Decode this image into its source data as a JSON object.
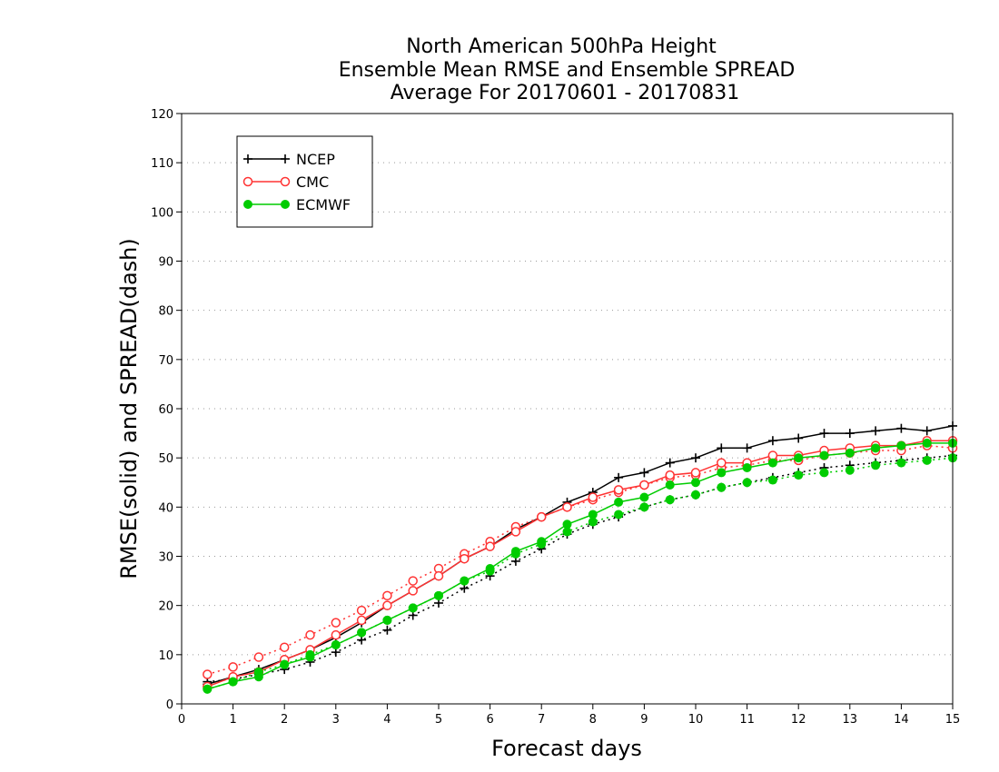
{
  "chart_data": {
    "type": "line",
    "title_lines": [
      "North American 500hPa Height",
      "Ensemble Mean RMSE and Ensemble SPREAD",
      "Average For 20170601 - 20170831"
    ],
    "xlabel": "Forecast days",
    "ylabel": "RMSE(solid) and SPREAD(dash)",
    "xlim": [
      0,
      15
    ],
    "ylim": [
      0,
      120
    ],
    "x_ticks": [
      0,
      1,
      2,
      3,
      4,
      5,
      6,
      7,
      8,
      9,
      10,
      11,
      12,
      13,
      14,
      15
    ],
    "y_ticks": [
      0,
      10,
      20,
      30,
      40,
      50,
      60,
      70,
      80,
      90,
      100,
      110,
      120
    ],
    "grid": "horizontal dotted",
    "legend_position": "top-left",
    "x": [
      0.5,
      1,
      1.5,
      2,
      2.5,
      3,
      3.5,
      4,
      4.5,
      5,
      5.5,
      6,
      6.5,
      7,
      7.5,
      8,
      8.5,
      9,
      9.5,
      10,
      10.5,
      11,
      11.5,
      12,
      12.5,
      13,
      13.5,
      14,
      14.5,
      15
    ],
    "series": [
      {
        "name": "NCEP",
        "color": "#000000",
        "marker": "plus",
        "rmse": [
          4.0,
          5.5,
          7.0,
          9.0,
          11.0,
          13.5,
          16.5,
          20.0,
          23.0,
          26.0,
          29.5,
          32.0,
          35.5,
          38.0,
          41.0,
          43.0,
          46.0,
          47.0,
          49.0,
          50.0,
          52.0,
          52.0,
          53.5,
          54.0,
          55.0,
          55.0,
          55.5,
          56.0,
          55.5,
          56.5
        ],
        "spread": [
          4.5,
          5.0,
          6.0,
          7.0,
          8.5,
          10.5,
          13.0,
          15.0,
          18.0,
          20.5,
          23.5,
          26.0,
          29.0,
          31.5,
          34.5,
          36.5,
          38.0,
          40.0,
          41.5,
          42.5,
          44.0,
          45.0,
          46.0,
          47.0,
          48.0,
          48.5,
          49.0,
          49.5,
          50.0,
          50.5
        ]
      },
      {
        "name": "CMC",
        "color": "#ff3333",
        "marker": "open-circle",
        "rmse": [
          3.5,
          5.5,
          6.5,
          9.0,
          11.0,
          14.0,
          17.0,
          20.0,
          23.0,
          26.0,
          29.5,
          32.0,
          35.0,
          38.0,
          40.0,
          42.0,
          43.5,
          44.5,
          46.5,
          47.0,
          49.0,
          49.0,
          50.5,
          50.5,
          51.5,
          52.0,
          52.5,
          52.5,
          53.5,
          53.5
        ],
        "spread": [
          6.0,
          7.5,
          9.5,
          11.5,
          14.0,
          16.5,
          19.0,
          22.0,
          25.0,
          27.5,
          30.5,
          33.0,
          36.0,
          38.0,
          40.0,
          41.5,
          43.0,
          44.5,
          46.0,
          46.5,
          48.0,
          48.5,
          49.5,
          49.5,
          50.5,
          51.0,
          51.5,
          51.5,
          52.5,
          52.0
        ]
      },
      {
        "name": "ECMWF",
        "color": "#00cc00",
        "marker": "filled-circle",
        "rmse": [
          3.0,
          4.5,
          5.5,
          8.0,
          9.5,
          12.0,
          14.5,
          17.0,
          19.5,
          22.0,
          25.0,
          27.5,
          31.0,
          33.0,
          36.5,
          38.5,
          41.0,
          42.0,
          44.5,
          45.0,
          47.0,
          48.0,
          49.0,
          50.0,
          50.5,
          51.0,
          52.0,
          52.5,
          53.0,
          53.0
        ],
        "spread": [
          3.0,
          4.5,
          6.5,
          8.0,
          10.0,
          12.0,
          14.5,
          17.0,
          19.5,
          22.0,
          25.0,
          27.0,
          30.5,
          32.5,
          35.0,
          37.0,
          38.5,
          40.0,
          41.5,
          42.5,
          44.0,
          45.0,
          45.5,
          46.5,
          47.0,
          47.5,
          48.5,
          49.0,
          49.5,
          50.0
        ]
      }
    ]
  }
}
